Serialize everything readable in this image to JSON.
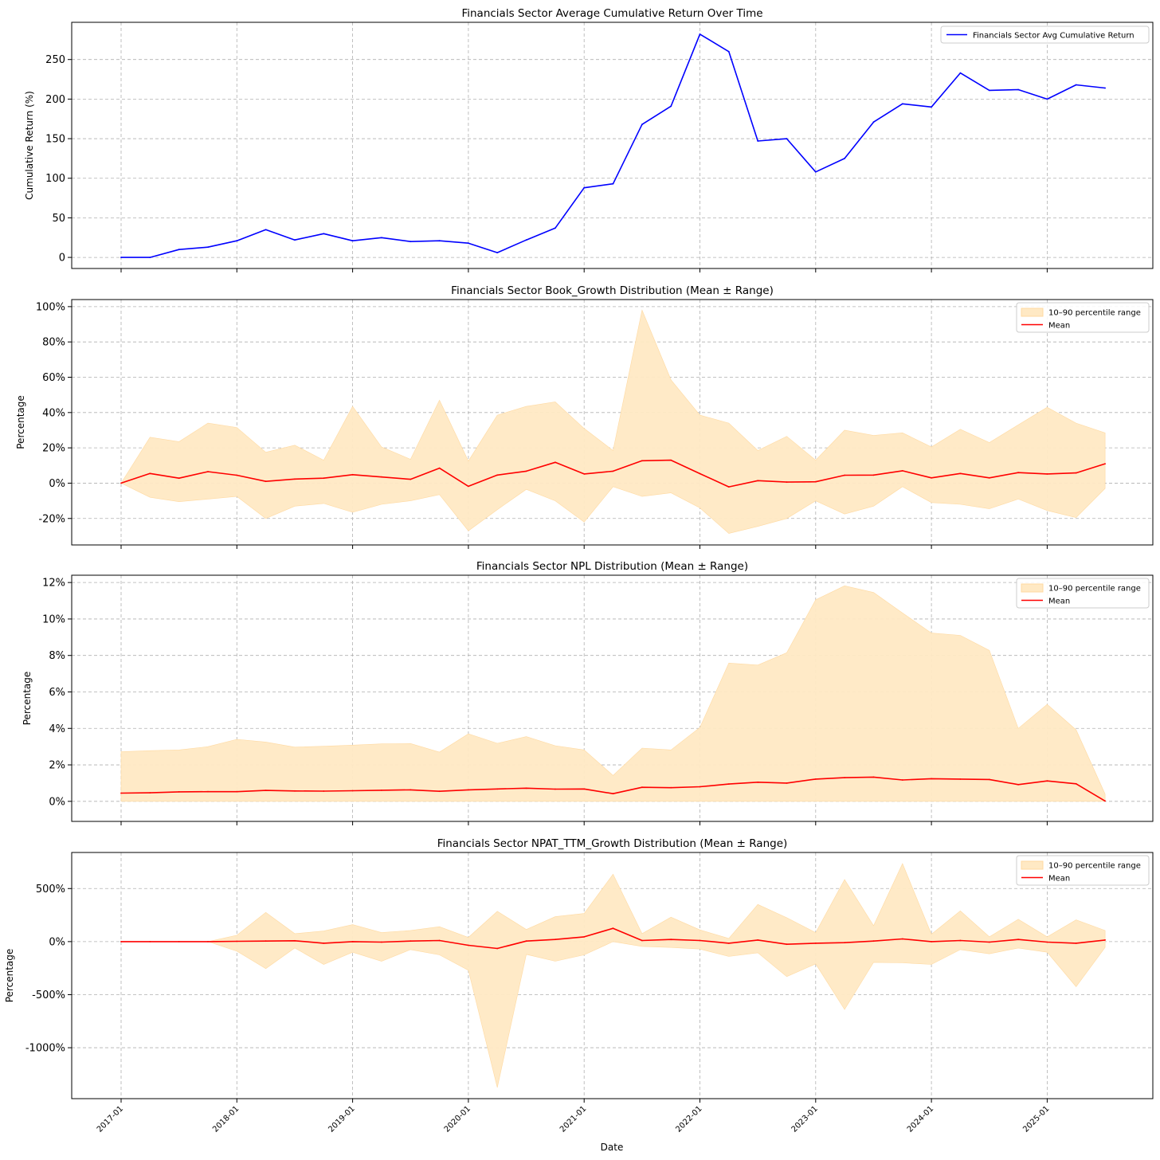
{
  "figure": {
    "xlabel": "Date",
    "x_tick_labels": [
      "2017-01",
      "2018-01",
      "2019-01",
      "2020-01",
      "2021-01",
      "2022-01",
      "2023-01",
      "2024-01",
      "2025-01"
    ]
  },
  "colors": {
    "line_blue": "#0000ff",
    "mean_red": "#ff0000",
    "band_fill": "#ffe9c4",
    "grid": "#b0b0b0"
  },
  "chart_data": [
    {
      "type": "line",
      "title": "Financials Sector Average Cumulative Return Over Time",
      "xlabel": "",
      "ylabel": "Cumulative Return (%)",
      "ylim": [
        -14,
        297
      ],
      "yticks": [
        0,
        50,
        100,
        150,
        200,
        250
      ],
      "ytick_labels": [
        "0",
        "50",
        "100",
        "150",
        "200",
        "250"
      ],
      "legend": {
        "position": "top-right",
        "entries": [
          "Financials Sector Avg Cumulative Return"
        ]
      },
      "series": [
        {
          "name": "Financials Sector Avg Cumulative Return",
          "values": [
            0,
            0,
            10,
            13,
            21,
            35,
            22,
            30,
            21,
            25,
            20,
            21,
            18,
            6,
            22,
            37,
            88,
            93,
            168,
            191,
            282,
            260,
            147,
            150,
            108,
            125,
            171,
            194,
            190,
            233,
            211,
            212,
            200,
            218,
            214
          ]
        }
      ]
    },
    {
      "type": "area",
      "title": "Financials Sector Book_Growth Distribution (Mean ± Range)",
      "xlabel": "",
      "ylabel": "Percentage",
      "ylim": [
        -35,
        104
      ],
      "yticks": [
        -20,
        0,
        20,
        40,
        60,
        80,
        100
      ],
      "ytick_labels": [
        "-20%",
        "0%",
        "20%",
        "40%",
        "60%",
        "80%",
        "100%"
      ],
      "legend": {
        "position": "top-right",
        "entries": [
          "10–90 percentile range",
          "Mean"
        ]
      },
      "series": [
        {
          "name": "Mean",
          "values": [
            0,
            5.5,
            2.8,
            6.5,
            4.5,
            1,
            2.3,
            2.8,
            4.8,
            3.5,
            2.2,
            8.5,
            -1.8,
            4.6,
            6.8,
            11.8,
            5.2,
            6.8,
            12.7,
            13,
            5.4,
            -2.1,
            1.4,
            0.6,
            0.8,
            4.5,
            4.6,
            7,
            3,
            5.5,
            3,
            6,
            5.2,
            5.8,
            11
          ]
        },
        {
          "name": "10th percentile",
          "values": [
            0,
            -8,
            -10.5,
            -9,
            -7.5,
            -20,
            -13,
            -11.5,
            -16.5,
            -12,
            -10,
            -6.5,
            -27,
            -15,
            -3.5,
            -10,
            -22,
            -2,
            -7.5,
            -5.5,
            -14,
            -28.5,
            -24.5,
            -20,
            -10,
            -17.5,
            -13,
            -2,
            -11,
            -12,
            -14.5,
            -9,
            -15.5,
            -19.5,
            -3
          ]
        },
        {
          "name": "90th percentile",
          "values": [
            0,
            26,
            23.5,
            34,
            31.5,
            17.5,
            21.5,
            13,
            43.5,
            20.5,
            13.5,
            47,
            12.5,
            38.5,
            43.5,
            46,
            31,
            18.5,
            98,
            58.5,
            38.5,
            34,
            18.5,
            26.5,
            13,
            30,
            27,
            28.5,
            20.5,
            30.5,
            23,
            33,
            43,
            34,
            28.5
          ]
        }
      ]
    },
    {
      "type": "area",
      "title": "Financials Sector NPL Distribution (Mean ± Range)",
      "xlabel": "",
      "ylabel": "Percentage",
      "ylim": [
        -1.1,
        12.4
      ],
      "yticks": [
        0,
        2,
        4,
        6,
        8,
        10,
        12
      ],
      "ytick_labels": [
        "0%",
        "2%",
        "4%",
        "6%",
        "8%",
        "10%",
        "12%"
      ],
      "legend": {
        "position": "top-right",
        "entries": [
          "10–90 percentile range",
          "Mean"
        ]
      },
      "series": [
        {
          "name": "Mean",
          "values": [
            0.45,
            0.47,
            0.52,
            0.53,
            0.53,
            0.6,
            0.57,
            0.56,
            0.58,
            0.61,
            0.63,
            0.55,
            0.63,
            0.68,
            0.72,
            0.67,
            0.68,
            0.42,
            0.77,
            0.75,
            0.8,
            0.95,
            1.05,
            1.0,
            1.22,
            1.3,
            1.33,
            1.17,
            1.24,
            1.22,
            1.2,
            0.92,
            1.12,
            0.96,
            0.02
          ]
        },
        {
          "name": "10th percentile",
          "values": [
            0,
            0,
            0,
            0,
            0,
            0,
            0,
            0,
            0,
            0,
            0,
            0,
            0,
            0,
            0,
            0,
            0,
            0,
            0,
            0,
            0,
            0,
            0,
            0,
            0,
            0,
            0,
            0,
            0,
            0,
            0,
            0,
            0,
            0,
            0
          ]
        },
        {
          "name": "90th percentile",
          "values": [
            2.72,
            2.78,
            2.82,
            3.0,
            3.4,
            3.25,
            2.97,
            3.02,
            3.08,
            3.15,
            3.17,
            2.7,
            3.7,
            3.18,
            3.55,
            3.05,
            2.82,
            1.42,
            2.92,
            2.82,
            4.05,
            7.58,
            7.47,
            8.15,
            11.05,
            11.82,
            11.45,
            10.33,
            9.23,
            9.1,
            8.28,
            4.0,
            5.32,
            3.92,
            0.4
          ]
        }
      ]
    },
    {
      "type": "area",
      "title": "Financials Sector NPAT_TTM_Growth Distribution (Mean ± Range)",
      "xlabel": "Date",
      "ylabel": "Percentage",
      "ylim": [
        -1480,
        840
      ],
      "yticks": [
        -1000,
        -500,
        0,
        500
      ],
      "ytick_labels": [
        "-1000%",
        "-500%",
        "0%",
        "500%"
      ],
      "legend": {
        "position": "top-right",
        "entries": [
          "10–90 percentile range",
          "Mean"
        ]
      },
      "series": [
        {
          "name": "Mean",
          "values": [
            0,
            0,
            0,
            0,
            3,
            5,
            8,
            -15,
            0,
            -5,
            5,
            10,
            -35,
            -65,
            5,
            20,
            45,
            125,
            10,
            20,
            10,
            -15,
            15,
            -25,
            -15,
            -10,
            5,
            25,
            0,
            10,
            -5,
            20,
            -5,
            -15,
            15
          ]
        },
        {
          "name": "10th percentile",
          "values": [
            0,
            0,
            0,
            0,
            -90,
            -255,
            -60,
            -215,
            -100,
            -185,
            -75,
            -125,
            -270,
            -1375,
            -120,
            -185,
            -125,
            0,
            -45,
            -55,
            -70,
            -140,
            -105,
            -330,
            -210,
            -640,
            -195,
            -200,
            -215,
            -75,
            -115,
            -60,
            -100,
            -425,
            -55
          ]
        },
        {
          "name": "90th percentile",
          "values": [
            0,
            0,
            0,
            0,
            60,
            275,
            75,
            100,
            160,
            85,
            105,
            140,
            40,
            285,
            115,
            235,
            265,
            635,
            75,
            230,
            110,
            30,
            350,
            225,
            85,
            585,
            150,
            735,
            70,
            290,
            45,
            210,
            45,
            205,
            105
          ]
        }
      ]
    }
  ]
}
